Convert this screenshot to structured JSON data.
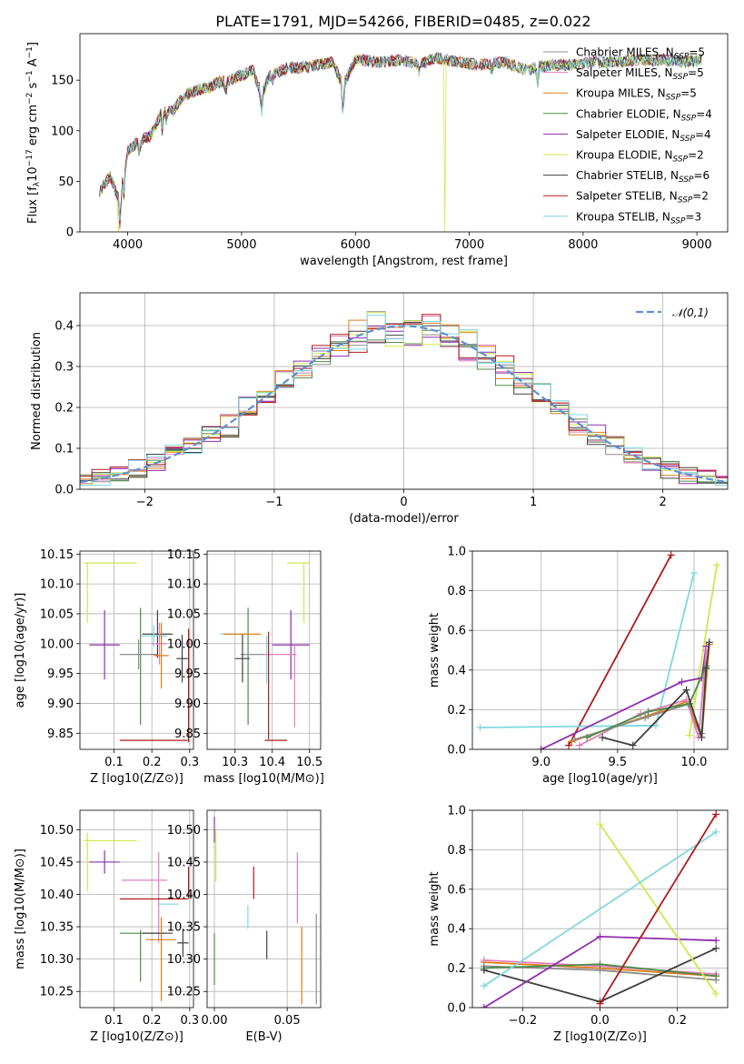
{
  "title": "PLATE=1791, MJD=54266, FIBERID=0485, z=0.022",
  "colors": {
    "Chabrier MILES": "#8c8c8c",
    "Salpeter MILES": "#e27fb8",
    "Kroupa MILES": "#e07b18",
    "Chabrier ELODIE": "#4c8c4c",
    "Salpeter ELODIE": "#8e2cae",
    "Kroupa ELODIE": "#cfe84d",
    "Chabrier STELIB": "#404040",
    "Salpeter STELIB": "#b01818",
    "Kroupa STELIB": "#7fd8e0"
  },
  "legend_labels": [
    "Chabrier MILES, N_SSP=5",
    "Salpeter MILES, N_SSP=5",
    "Kroupa MILES, N_SSP=5",
    "Chabrier ELODIE, N_SSP=4",
    "Salpeter ELODIE, N_SSP=4",
    "Kroupa ELODIE, N_SSP=2",
    "Chabrier STELIB, N_SSP=6",
    "Salpeter STELIB, N_SSP=2",
    "Kroupa STELIB, N_SSP=3"
  ],
  "chart_data": [
    {
      "id": "spectrum",
      "type": "line",
      "title": "PLATE=1791, MJD=54266, FIBERID=0485, z=0.022",
      "xlabel": "wavelength [Angstrom, rest frame]",
      "ylabel": "Flux [f_λ 10^-17 erg cm^-2 s^-1 A^-1]",
      "xlim": [
        3580,
        9270
      ],
      "ylim": [
        0,
        196
      ],
      "xticks": [
        4000,
        5000,
        6000,
        7000,
        8000,
        9000
      ],
      "yticks": [
        0,
        50,
        100,
        150
      ],
      "grid": false,
      "legend": "top-right",
      "x": [
        3750,
        3850,
        3930,
        3970,
        4000,
        4100,
        4200,
        4300,
        4400,
        4500,
        4600,
        4700,
        4800,
        4900,
        5000,
        5100,
        5175,
        5250,
        5400,
        5600,
        5800,
        5890,
        6000,
        6200,
        6400,
        6563,
        6700,
        6900,
        7100,
        7300,
        7500,
        7700,
        7900,
        8100,
        8300,
        8500,
        8700,
        8900,
        9050
      ],
      "y": [
        40,
        55,
        30,
        60,
        80,
        90,
        95,
        118,
        120,
        135,
        140,
        142,
        148,
        150,
        155,
        160,
        135,
        155,
        162,
        163,
        168,
        145,
        170,
        168,
        170,
        165,
        172,
        168,
        165,
        168,
        160,
        165,
        165,
        168,
        168,
        170,
        170,
        168,
        170
      ],
      "dropouts": [
        {
          "series": "Kroupa ELODIE",
          "x": 3920
        },
        {
          "series": "Kroupa ELODIE",
          "x": 6790
        },
        {
          "series": "Salpeter STELIB",
          "x": 7420
        }
      ]
    },
    {
      "id": "residual_hist",
      "type": "histogram",
      "xlabel": "(data-model)/error",
      "ylabel": "Normed distribution",
      "xlim": [
        -2.5,
        2.5
      ],
      "ylim": [
        0,
        0.48
      ],
      "xticks": [
        -2,
        -1,
        0,
        1,
        2
      ],
      "yticks": [
        0.0,
        0.1,
        0.2,
        0.3,
        0.4
      ],
      "grid": true,
      "legend": "top-right",
      "reference": {
        "name": "𝒩(0,1)",
        "color": "#5b8fd6",
        "mean": 0,
        "sigma": 1
      }
    },
    {
      "id": "age_vs_Z",
      "type": "errorbar",
      "xlabel": "Z [log10(Z/Z⊙)]",
      "ylabel": "age [log10(age/yr)]",
      "xlim": [
        0.01,
        0.31
      ],
      "ylim": [
        9.823,
        10.155
      ],
      "xticks": [
        0.1,
        0.2,
        0.3
      ],
      "yticks": [
        9.85,
        9.9,
        9.95,
        10.0,
        10.05,
        10.1,
        10.15
      ],
      "grid": true,
      "points": [
        {
          "series": "Kroupa ELODIE",
          "x": 0.09,
          "xerr": 0.07,
          "y": 10.135,
          "yerr": 0.0
        },
        {
          "series": "Kroupa ELODIE",
          "x": 0.03,
          "xerr": 0.0,
          "y": 10.085,
          "yerr": 0.05
        },
        {
          "series": "Salpeter ELODIE",
          "x": 0.075,
          "xerr": 0.04,
          "y": 9.998,
          "yerr": 0.058
        },
        {
          "series": "Chabrier ELODIE",
          "x": 0.17,
          "xerr": 0.0,
          "y": 9.962,
          "yerr": 0.098
        },
        {
          "series": "Chabrier MILES",
          "x": 0.165,
          "xerr": 0.05,
          "y": 9.982,
          "yerr": 0.025
        },
        {
          "series": "Chabrier STELIB",
          "x": 0.215,
          "xerr": 0.04,
          "y": 10.016,
          "yerr": 0.04
        },
        {
          "series": "Kroupa STELIB",
          "x": 0.205,
          "xerr": 0.035,
          "y": 10.013,
          "yerr": 0.018
        },
        {
          "series": "Salpeter MILES",
          "x": 0.22,
          "xerr": 0.02,
          "y": 10.0,
          "yerr": 0.035
        },
        {
          "series": "Kroupa MILES",
          "x": 0.225,
          "xerr": 0.02,
          "y": 9.98,
          "yerr": 0.055
        },
        {
          "series": "Chabrier STELIB",
          "x": 0.28,
          "xerr": 0.015,
          "y": 9.975,
          "yerr": 0.04
        },
        {
          "series": "Salpeter STELIB",
          "x": 0.297,
          "xerr": 0.0,
          "y": 9.93,
          "yerr": 0.095
        },
        {
          "series": "Salpeter STELIB",
          "x": 0.205,
          "xerr": 0.09,
          "y": 9.838,
          "yerr": 0.0
        }
      ]
    },
    {
      "id": "age_vs_mass",
      "type": "errorbar",
      "xlabel": "mass [log10(M/M⊙)]",
      "ylabel": "",
      "xlim": [
        10.225,
        10.53
      ],
      "ylim": [
        9.823,
        10.155
      ],
      "xticks": [
        10.3,
        10.4,
        10.5
      ],
      "yticks": [
        9.85,
        9.9,
        9.95,
        10.0,
        10.05,
        10.1,
        10.15
      ],
      "grid": true,
      "points": [
        {
          "series": "Kroupa ELODIE",
          "x": 10.47,
          "xerr": 0.03,
          "y": 10.135,
          "yerr": 0.0
        },
        {
          "series": "Kroupa ELODIE",
          "x": 10.485,
          "xerr": 0.0,
          "y": 10.085,
          "yerr": 0.05
        },
        {
          "series": "Salpeter ELODIE",
          "x": 10.45,
          "xerr": 0.05,
          "y": 9.998,
          "yerr": 0.058
        },
        {
          "series": "Chabrier ELODIE",
          "x": 10.335,
          "xerr": 0.0,
          "y": 9.962,
          "yerr": 0.098
        },
        {
          "series": "Chabrier MILES",
          "x": 10.35,
          "xerr": 0.035,
          "y": 9.982,
          "yerr": 0.0
        },
        {
          "series": "Chabrier STELIB",
          "x": 10.32,
          "xerr": 0.02,
          "y": 9.975,
          "yerr": 0.04
        },
        {
          "series": "Kroupa STELIB",
          "x": 10.3,
          "xerr": 0.04,
          "y": 10.016,
          "yerr": 0.0
        },
        {
          "series": "Kroupa MILES",
          "x": 10.32,
          "xerr": 0.05,
          "y": 10.016,
          "yerr": 0.0
        },
        {
          "series": "Kroupa STELIB",
          "x": 10.385,
          "xerr": 0.0,
          "y": 9.973,
          "yerr": 0.04
        },
        {
          "series": "Salpeter MILES",
          "x": 10.42,
          "xerr": 0.045,
          "y": 9.982,
          "yerr": 0.0
        },
        {
          "series": "Salpeter MILES",
          "x": 10.46,
          "xerr": 0.0,
          "y": 9.93,
          "yerr": 0.07
        },
        {
          "series": "Salpeter STELIB",
          "x": 10.39,
          "xerr": 0.0,
          "y": 9.93,
          "yerr": 0.09
        },
        {
          "series": "Salpeter STELIB",
          "x": 10.41,
          "xerr": 0.03,
          "y": 9.838,
          "yerr": 0.0
        }
      ]
    },
    {
      "id": "massweight_vs_age",
      "type": "line",
      "xlabel": "age [log10(age/yr)]",
      "ylabel": "mass weight",
      "xlim": [
        8.55,
        10.22
      ],
      "ylim": [
        0,
        1.0
      ],
      "xticks": [
        9.0,
        9.5,
        10.0
      ],
      "yticks": [
        0.0,
        0.2,
        0.4,
        0.6,
        0.8,
        1.0
      ],
      "grid": true,
      "series": [
        {
          "name": "Salpeter STELIB",
          "x": [
            9.18,
            9.85
          ],
          "y": [
            0.02,
            0.98
          ]
        },
        {
          "name": "Kroupa STELIB",
          "x": [
            8.6,
            9.75,
            10.0
          ],
          "y": [
            0.11,
            0.12,
            0.89
          ]
        },
        {
          "name": "Kroupa ELODIE",
          "x": [
            9.97,
            10.15
          ],
          "y": [
            0.07,
            0.93
          ]
        },
        {
          "name": "Salpeter ELODIE",
          "x": [
            9.0,
            9.92,
            10.05,
            10.08
          ],
          "y": [
            0.0,
            0.34,
            0.36,
            0.52
          ]
        },
        {
          "name": "Kroupa MILES",
          "x": [
            9.2,
            9.7,
            9.95,
            10.05,
            10.1
          ],
          "y": [
            0.04,
            0.17,
            0.24,
            0.06,
            0.53
          ]
        },
        {
          "name": "Salpeter MILES",
          "x": [
            9.25,
            9.65,
            9.95,
            10.03,
            10.08
          ],
          "y": [
            0.02,
            0.18,
            0.25,
            0.06,
            0.5
          ]
        },
        {
          "name": "Chabrier MILES",
          "x": [
            9.22,
            9.68,
            9.97,
            10.05,
            10.08
          ],
          "y": [
            0.05,
            0.16,
            0.23,
            0.08,
            0.42
          ]
        },
        {
          "name": "Chabrier ELODIE",
          "x": [
            9.3,
            9.7,
            9.97,
            10.08
          ],
          "y": [
            0.06,
            0.19,
            0.23,
            0.42
          ]
        },
        {
          "name": "Chabrier STELIB",
          "x": [
            9.4,
            9.6,
            9.95,
            10.05,
            10.08,
            10.1
          ],
          "y": [
            0.06,
            0.02,
            0.3,
            0.06,
            0.41,
            0.54
          ]
        }
      ]
    },
    {
      "id": "mass_vs_Z",
      "type": "errorbar",
      "xlabel": "Z [log10(Z/Z⊙)]",
      "ylabel": "mass [log10(M/M⊙)]",
      "xlim": [
        0.01,
        0.31
      ],
      "ylim": [
        10.225,
        10.53
      ],
      "xticks": [
        0.1,
        0.2,
        0.3
      ],
      "yticks": [
        10.25,
        10.3,
        10.35,
        10.4,
        10.45,
        10.5
      ],
      "grid": true,
      "points": [
        {
          "series": "Kroupa ELODIE",
          "x": 0.09,
          "xerr": 0.07,
          "y": 10.483,
          "yerr": 0.0
        },
        {
          "series": "Kroupa ELODIE",
          "x": 0.03,
          "xerr": 0.0,
          "y": 10.45,
          "yerr": 0.045
        },
        {
          "series": "Salpeter ELODIE",
          "x": 0.075,
          "xerr": 0.04,
          "y": 10.45,
          "yerr": 0.018
        },
        {
          "series": "Salpeter MILES",
          "x": 0.18,
          "xerr": 0.06,
          "y": 10.422,
          "yerr": 0.0
        },
        {
          "series": "Salpeter MILES",
          "x": 0.218,
          "xerr": 0.0,
          "y": 10.395,
          "yerr": 0.07
        },
        {
          "series": "Salpeter STELIB",
          "x": 0.205,
          "xerr": 0.09,
          "y": 10.393,
          "yerr": 0.0
        },
        {
          "series": "Salpeter STELIB",
          "x": 0.297,
          "xerr": 0.0,
          "y": 10.418,
          "yerr": 0.025
        },
        {
          "series": "Kroupa STELIB",
          "x": 0.245,
          "xerr": 0.025,
          "y": 10.385,
          "yerr": 0.0
        },
        {
          "series": "Chabrier ELODIE",
          "x": 0.17,
          "xerr": 0.0,
          "y": 10.305,
          "yerr": 0.04
        },
        {
          "series": "Chabrier ELODIE",
          "x": 0.175,
          "xerr": 0.06,
          "y": 10.34,
          "yerr": 0.0
        },
        {
          "series": "Chabrier STELIB",
          "x": 0.215,
          "xerr": 0.04,
          "y": 10.34,
          "yerr": 0.0
        },
        {
          "series": "Kroupa MILES",
          "x": 0.225,
          "xerr": 0.04,
          "y": 10.33,
          "yerr": 0.0
        },
        {
          "series": "Kroupa MILES",
          "x": 0.225,
          "xerr": 0.0,
          "y": 10.3,
          "yerr": 0.065
        },
        {
          "series": "Chabrier STELIB",
          "x": 0.282,
          "xerr": 0.015,
          "y": 10.325,
          "yerr": 0.022
        }
      ]
    },
    {
      "id": "mass_vs_EBV",
      "type": "errorbar",
      "xlabel": "E(B-V)",
      "ylabel": "",
      "xlim": [
        -0.005,
        0.073
      ],
      "ylim": [
        10.225,
        10.53
      ],
      "xticks": [
        0.0,
        0.05
      ],
      "yticks": [
        10.25,
        10.3,
        10.35,
        10.4,
        10.45,
        10.5
      ],
      "grid": true,
      "points": [
        {
          "series": "Salpeter ELODIE",
          "x": 0.0,
          "xerr": 0.0,
          "y": 10.5,
          "yerr": 0.02
        },
        {
          "series": "Kroupa ELODIE",
          "x": 0.001,
          "xerr": 0.0,
          "y": 10.46,
          "yerr": 0.04
        },
        {
          "series": "Chabrier ELODIE",
          "x": 0.0,
          "xerr": 0.0,
          "y": 10.3,
          "yerr": 0.04
        },
        {
          "series": "Salpeter STELIB",
          "x": 0.027,
          "xerr": 0.0,
          "y": 10.418,
          "yerr": 0.025
        },
        {
          "series": "Kroupa STELIB",
          "x": 0.023,
          "xerr": 0.0,
          "y": 10.365,
          "yerr": 0.018
        },
        {
          "series": "Chabrier STELIB",
          "x": 0.036,
          "xerr": 0.0,
          "y": 10.322,
          "yerr": 0.022
        },
        {
          "series": "Salpeter MILES",
          "x": 0.057,
          "xerr": 0.0,
          "y": 10.41,
          "yerr": 0.055
        },
        {
          "series": "Kroupa MILES",
          "x": 0.06,
          "xerr": 0.0,
          "y": 10.29,
          "yerr": 0.06
        },
        {
          "series": "Chabrier MILES",
          "x": 0.07,
          "xerr": 0.0,
          "y": 10.3,
          "yerr": 0.07
        }
      ]
    },
    {
      "id": "massweight_vs_Z",
      "type": "line",
      "xlabel": "Z [log10(Z/Z⊙)]",
      "ylabel": "mass weight",
      "xlim": [
        -0.33,
        0.33
      ],
      "ylim": [
        0,
        1.0
      ],
      "xticks": [
        -0.2,
        0.0,
        0.2
      ],
      "yticks": [
        0.0,
        0.2,
        0.4,
        0.6,
        0.8,
        1.0
      ],
      "grid": true,
      "series": [
        {
          "name": "Kroupa MILES",
          "x": [
            -0.3,
            0.0,
            0.3
          ],
          "y": [
            0.23,
            0.2,
            0.16
          ]
        },
        {
          "name": "Salpeter MILES",
          "x": [
            -0.3,
            0.0,
            0.3
          ],
          "y": [
            0.24,
            0.21,
            0.17
          ]
        },
        {
          "name": "Chabrier MILES",
          "x": [
            -0.3,
            0.0,
            0.3
          ],
          "y": [
            0.21,
            0.19,
            0.14
          ]
        },
        {
          "name": "Chabrier ELODIE",
          "x": [
            -0.3,
            0.0,
            0.3
          ],
          "y": [
            0.2,
            0.22,
            0.16
          ]
        },
        {
          "name": "Chabrier STELIB",
          "x": [
            -0.3,
            0.0,
            0.3
          ],
          "y": [
            0.19,
            0.03,
            0.3
          ]
        },
        {
          "name": "Salpeter ELODIE",
          "x": [
            -0.3,
            0.0,
            0.3
          ],
          "y": [
            0.0,
            0.36,
            0.34
          ]
        },
        {
          "name": "Kroupa ELODIE",
          "x": [
            0.0,
            0.3
          ],
          "y": [
            0.93,
            0.07
          ]
        },
        {
          "name": "Kroupa STELIB",
          "x": [
            -0.3,
            0.3
          ],
          "y": [
            0.11,
            0.89
          ]
        },
        {
          "name": "Salpeter STELIB",
          "x": [
            0.0,
            0.3
          ],
          "y": [
            0.02,
            0.98
          ]
        }
      ]
    }
  ]
}
